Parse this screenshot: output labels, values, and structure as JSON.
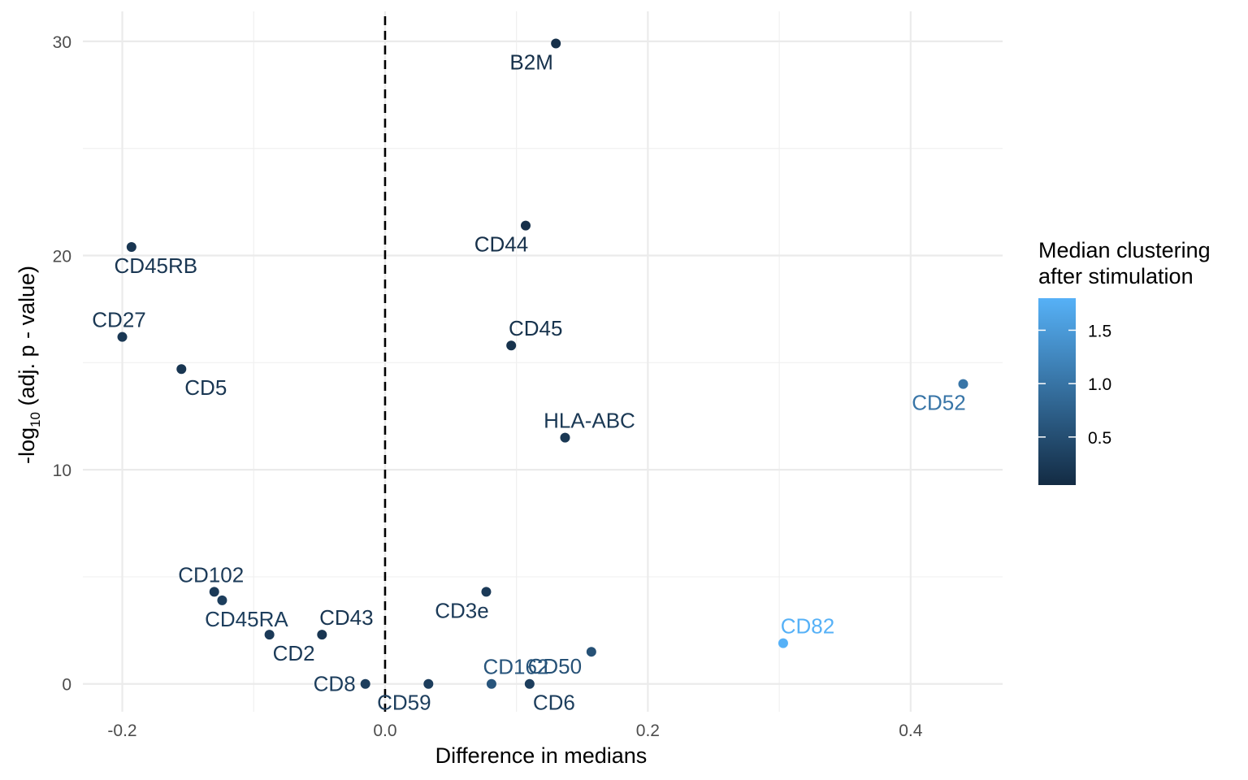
{
  "chart_data": {
    "type": "scatter",
    "title": "",
    "xlabel": "Difference in medians",
    "ylabel_parts": {
      "prefix": "-log",
      "subscript": "10",
      "suffix": " (adj. p - value)"
    },
    "xlim": [
      -0.23,
      0.47
    ],
    "ylim": [
      -1.3,
      31.4
    ],
    "x_ticks": [
      -0.2,
      0.0,
      0.2,
      0.4
    ],
    "x_tick_labels": [
      "-0.2",
      "0.0",
      "0.2",
      "0.4"
    ],
    "y_ticks": [
      0,
      10,
      20,
      30
    ],
    "y_tick_labels": [
      "0",
      "10",
      "20",
      "30"
    ],
    "x_minor_ticks": [
      -0.1,
      0.1,
      0.3
    ],
    "y_minor_ticks": [
      5,
      15,
      25
    ],
    "grid": true,
    "reference_line": {
      "x": 0,
      "style": "dashed"
    },
    "color_scale": {
      "title_lines": [
        "Median clustering",
        "after stimulation"
      ],
      "low_color": "#132B43",
      "high_color": "#56B1F7",
      "range": [
        0.05,
        1.8
      ],
      "ticks": [
        0.5,
        1.0,
        1.5
      ],
      "tick_labels": [
        "0.5",
        "1.0",
        "1.5"
      ],
      "legend_placement": "right"
    },
    "points": [
      {
        "label": "B2M",
        "x": 0.13,
        "y": 29.9,
        "color_value": 0.12,
        "label_pos": "below-left"
      },
      {
        "label": "CD44",
        "x": 0.107,
        "y": 21.4,
        "color_value": 0.12,
        "label_pos": "below-left"
      },
      {
        "label": "CD45RB",
        "x": -0.193,
        "y": 20.4,
        "color_value": 0.2,
        "label_pos": "below-right"
      },
      {
        "label": "CD27",
        "x": -0.2,
        "y": 16.2,
        "color_value": 0.22,
        "label_pos": "above-left"
      },
      {
        "label": "CD45",
        "x": 0.096,
        "y": 15.8,
        "color_value": 0.15,
        "label_pos": "above-right"
      },
      {
        "label": "CD5",
        "x": -0.155,
        "y": 14.7,
        "color_value": 0.2,
        "label_pos": "below-right"
      },
      {
        "label": "CD52",
        "x": 0.44,
        "y": 14.0,
        "color_value": 1.02,
        "label_pos": "below-left"
      },
      {
        "label": "HLA-ABC",
        "x": 0.137,
        "y": 11.5,
        "color_value": 0.22,
        "label_pos": "above-right"
      },
      {
        "label": "CD102",
        "x": -0.13,
        "y": 4.3,
        "color_value": 0.25,
        "label_pos": "above-left"
      },
      {
        "label": "CD45RA",
        "x": -0.124,
        "y": 3.9,
        "color_value": 0.3,
        "label_pos": "below-right"
      },
      {
        "label": "CD3e",
        "x": 0.077,
        "y": 4.3,
        "color_value": 0.25,
        "label_pos": "below-left"
      },
      {
        "label": "CD2",
        "x": -0.088,
        "y": 2.3,
        "color_value": 0.25,
        "label_pos": "below-right"
      },
      {
        "label": "CD43",
        "x": -0.048,
        "y": 2.3,
        "color_value": 0.2,
        "label_pos": "above-right"
      },
      {
        "label": "CD82",
        "x": 0.303,
        "y": 1.9,
        "color_value": 1.8,
        "label_pos": "above-right"
      },
      {
        "label": "CD50",
        "x": 0.157,
        "y": 1.5,
        "color_value": 0.55,
        "label_pos": "below-left-text-left"
      },
      {
        "label": "CD8",
        "x": -0.015,
        "y": 0.0,
        "color_value": 0.3,
        "label_pos": "left"
      },
      {
        "label": "CD59",
        "x": 0.033,
        "y": 0.0,
        "color_value": 0.3,
        "label_pos": "below-left"
      },
      {
        "label": "CD162",
        "x": 0.081,
        "y": 0.0,
        "color_value": 0.6,
        "label_pos": "above-right"
      },
      {
        "label": "CD6",
        "x": 0.11,
        "y": 0.0,
        "color_value": 0.3,
        "label_pos": "below-right"
      }
    ]
  }
}
